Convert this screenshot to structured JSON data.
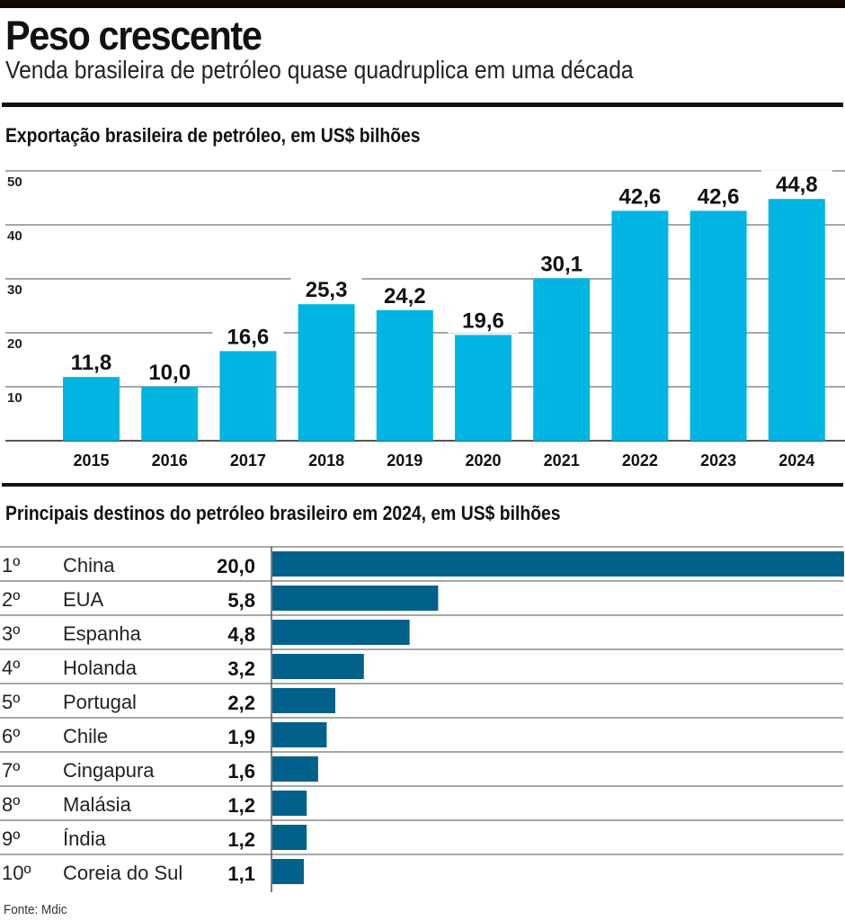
{
  "header": {
    "title": "Peso crescente",
    "subtitle": "Venda brasileira de petróleo quase quadruplica em uma década"
  },
  "source": "Fonte: Mdic",
  "colors": {
    "export_bar": "#00B5E2",
    "destination_bar": "#01618A",
    "gridline": "#8a8a8a",
    "text": "#111111"
  },
  "chart_data": [
    {
      "type": "bar",
      "title": "Exportação brasileira de petróleo, em  US$ bilhões",
      "xlabel": "",
      "ylabel": "",
      "categories": [
        "2015",
        "2016",
        "2017",
        "2018",
        "2019",
        "2020",
        "2021",
        "2022",
        "2023",
        "2024"
      ],
      "values": [
        11.8,
        10.0,
        16.6,
        25.3,
        24.2,
        19.6,
        30.1,
        42.6,
        42.6,
        44.8
      ],
      "value_labels": [
        "11,8",
        "10,0",
        "16,6",
        "25,3",
        "24,2",
        "19,6",
        "30,1",
        "42,6",
        "42,6",
        "44,8"
      ],
      "ylim": [
        0,
        50
      ],
      "yticks": [
        10,
        20,
        30,
        40,
        50
      ],
      "ytick_labels": [
        "10",
        "20",
        "30",
        "40",
        "50"
      ],
      "grid": true,
      "legend": "none"
    },
    {
      "type": "bar",
      "orientation": "horizontal",
      "title": "Principais destinos do petróleo brasileiro em 2024, em US$ bilhões",
      "ranks": [
        "1º",
        "2º",
        "3º",
        "4º",
        "5º",
        "6º",
        "7º",
        "8º",
        "9º",
        "10º"
      ],
      "categories": [
        "China",
        "EUA",
        "Espanha",
        "Holanda",
        "Portugal",
        "Chile",
        "Cingapura",
        "Malásia",
        "Índia",
        "Coreia do Sul"
      ],
      "values": [
        20.0,
        5.8,
        4.8,
        3.2,
        2.2,
        1.9,
        1.6,
        1.2,
        1.2,
        1.1
      ],
      "value_labels": [
        "20,0",
        "5,8",
        "4,8",
        "3,2",
        "2,2",
        "1,9",
        "1,6",
        "1,2",
        "1,2",
        "1,1"
      ],
      "xlim": [
        0,
        20
      ],
      "grid": true,
      "legend": "none"
    }
  ]
}
